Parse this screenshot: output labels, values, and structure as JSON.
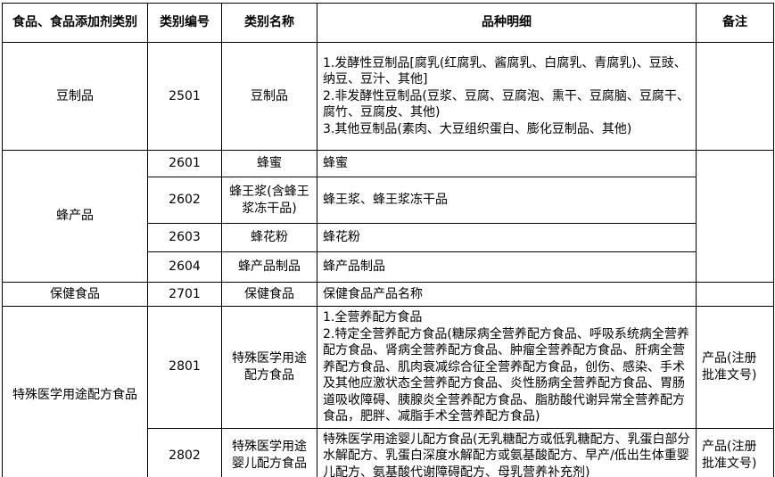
{
  "table": {
    "headers": [
      "食品、食品添加剂类别",
      "类别编号",
      "类别名称",
      "品种明细",
      "备注"
    ],
    "groups": [
      {
        "category": "豆制品",
        "rows": [
          {
            "code": "2501",
            "name": "豆制品",
            "detail": "1.发酵性豆制品[腐乳(红腐乳、酱腐乳、白腐乳、青腐乳)、豆豉、纳豆、豆汁、其他]\n2.非发酵性豆制品(豆浆、豆腐、豆腐泡、熏干、豆腐脑、豆腐干、腐竹、豆腐皮、其他)\n3.其他豆制品(素肉、大豆组织蛋白、膨化豆制品、其他)",
            "remark": ""
          }
        ]
      },
      {
        "category": "蜂产品",
        "remark": "",
        "rows": [
          {
            "code": "2601",
            "name": "蜂蜜",
            "detail": "蜂蜜"
          },
          {
            "code": "2602",
            "name": "蜂王浆(含蜂王浆冻干品)",
            "detail": "蜂王浆、蜂王浆冻干品"
          },
          {
            "code": "2603",
            "name": "蜂花粉",
            "detail": "蜂花粉"
          },
          {
            "code": "2604",
            "name": "蜂产品制品",
            "detail": "蜂产品制品"
          }
        ]
      },
      {
        "category": "保健食品",
        "rows": [
          {
            "code": "2701",
            "name": "保健食品",
            "detail": "保健食品产品名称",
            "remark": ""
          }
        ]
      },
      {
        "category": "特殊医学用途配方食品",
        "rows": [
          {
            "code": "2801",
            "name": "特殊医学用途配方食品",
            "detail": "1.全营养配方食品\n2.特定全营养配方食品(糖尿病全营养配方食品、呼吸系统病全营养配方食品、肾病全营养配方食品、肿瘤全营养配方食品、肝病全营养配方食品、肌肉衰减综合征全营养配方食品，创伤、感染、手术及其他应激状态全营养配方食品、炎性肠病全营养配方食品、胃肠道吸收障碍、胰腺炎全营养配方食品、脂肪酸代谢异常全营养配方食品，肥胖、减脂手术全营养配方食品)",
            "remark": "产品(注册批准文号)"
          },
          {
            "code": "2802",
            "name": "特殊医学用途婴儿配方食品",
            "detail": "特殊医学用途婴儿配方食品(无乳糖配方或低乳糖配方、乳蛋白部分水解配方、乳蛋白深度水解配方或氨基酸配方、早产/低出生体重婴儿配方、氨基酸代谢障碍配方、母乳营养补充剂)",
            "remark": "产品(注册批准文号)"
          }
        ]
      }
    ]
  }
}
